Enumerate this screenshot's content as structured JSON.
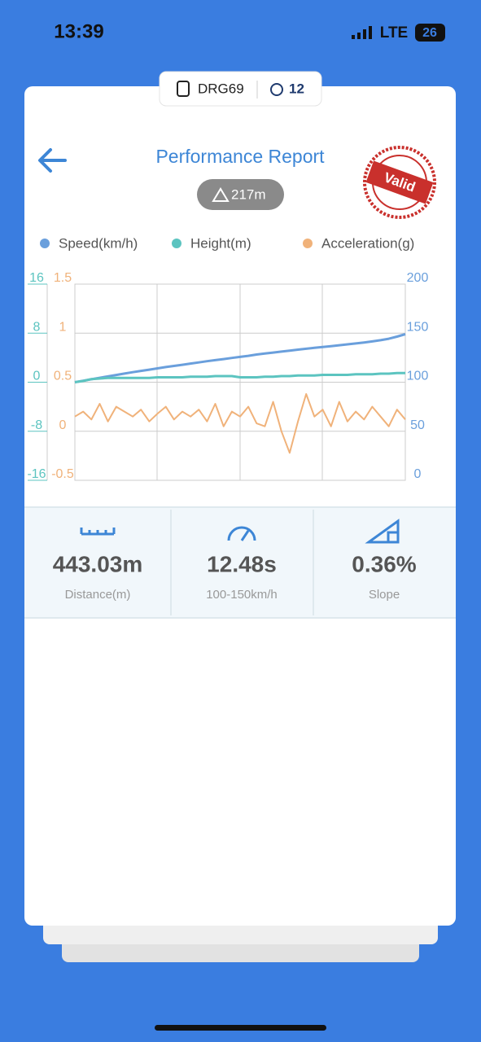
{
  "status_bar": {
    "time": "13:39",
    "network": "LTE",
    "battery": "26"
  },
  "header": {
    "device": "DRG69",
    "satellites": "12",
    "title": "Performance Report",
    "altitude": "217m",
    "stamp": "Valid"
  },
  "chart_data": {
    "type": "line",
    "grid": true,
    "series": [
      {
        "name": "Speed(km/h)",
        "color": "#6a9fdc",
        "axis": "y3",
        "values": [
          100,
          101.5,
          103,
          104.5,
          106,
          107.4,
          108.8,
          110.2,
          111.5,
          112.8,
          114.1,
          115.4,
          116.6,
          117.8,
          119,
          120.2,
          121.4,
          122.5,
          123.6,
          124.7,
          125.8,
          126.9,
          128.2,
          129.2,
          130.2,
          131.2,
          132.2,
          133.2,
          134.1,
          135,
          135.9,
          136.8,
          137.7,
          138.6,
          139.5,
          140.5,
          141.6,
          142.8,
          144.3,
          146.5,
          149
        ]
      },
      {
        "name": "Height(m)",
        "color": "#5cc4c0",
        "axis": "y",
        "values": [
          0,
          0.2,
          0.5,
          0.6,
          0.7,
          0.7,
          0.7,
          0.7,
          0.7,
          0.7,
          0.8,
          0.8,
          0.8,
          0.8,
          0.9,
          0.9,
          0.9,
          1.0,
          1.0,
          1.0,
          0.8,
          0.8,
          0.8,
          0.9,
          0.9,
          1.0,
          1.0,
          1.1,
          1.1,
          1.1,
          1.2,
          1.2,
          1.2,
          1.2,
          1.3,
          1.3,
          1.3,
          1.4,
          1.4,
          1.5,
          1.5
        ]
      },
      {
        "name": "Acceleration(g)",
        "color": "#f0b27a",
        "axis": "y2",
        "values": [
          0.15,
          0.2,
          0.12,
          0.28,
          0.1,
          0.25,
          0.2,
          0.15,
          0.22,
          0.1,
          0.18,
          0.25,
          0.12,
          0.2,
          0.15,
          0.22,
          0.1,
          0.28,
          0.05,
          0.2,
          0.15,
          0.25,
          0.08,
          0.05,
          0.3,
          0.0,
          -0.22,
          0.1,
          0.38,
          0.15,
          0.22,
          0.05,
          0.3,
          0.1,
          0.2,
          0.12,
          0.25,
          0.15,
          0.05,
          0.22,
          0.12
        ]
      }
    ],
    "ylim": [
      -16,
      16
    ],
    "yticks": [
      16,
      8,
      0,
      -8,
      -16
    ],
    "y2lim": [
      -0.5,
      1.5
    ],
    "y2ticks": [
      1.5,
      1,
      0.5,
      0,
      -0.5
    ],
    "y3lim": [
      0,
      200
    ],
    "y3ticks": [
      200,
      150,
      100,
      50,
      0
    ]
  },
  "stats": [
    {
      "value": "443.03m",
      "label": "Distance(m)"
    },
    {
      "value": "12.48s",
      "label": "100-150km/h"
    },
    {
      "value": "0.36%",
      "label": "Slope"
    }
  ]
}
